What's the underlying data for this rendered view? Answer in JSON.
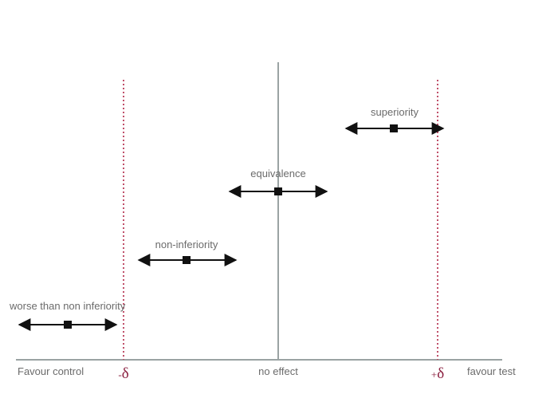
{
  "axis_labels": {
    "left": "Favour control",
    "center": "no effect",
    "right": "favour test"
  },
  "margins": {
    "minus": {
      "sign": "-",
      "symbol": "δ"
    },
    "plus": {
      "sign": "+",
      "symbol": "δ"
    }
  },
  "intervals": [
    {
      "id": "worse",
      "label": "worse than non inferiority"
    },
    {
      "id": "noninferiority",
      "label": "non-inferiority"
    },
    {
      "id": "equivalence",
      "label": "equivalence"
    },
    {
      "id": "superiority",
      "label": "superiority"
    }
  ],
  "colors": {
    "axis": "#9aa3a3",
    "margin_line": "#c0506a",
    "delta": "#8b2040",
    "arrow": "#111111",
    "text": "#6b6b6b"
  }
}
